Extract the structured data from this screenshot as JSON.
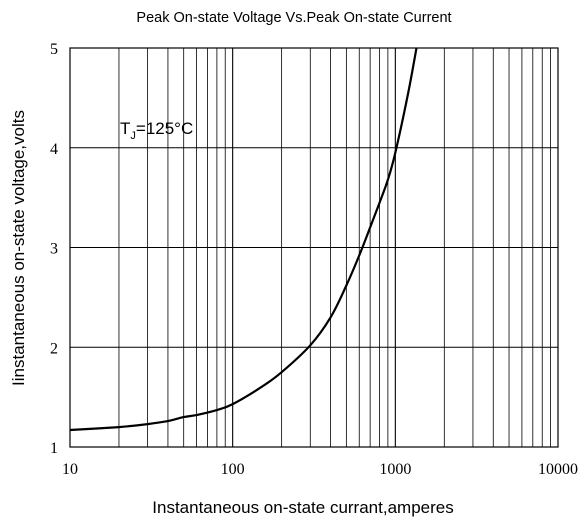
{
  "chart_data": {
    "type": "line",
    "title": "Peak On-state Voltage Vs.Peak On-state Current",
    "xlabel": "Instantaneous on-state currant,amperes",
    "ylabel": "Iinstantaneous on-state voltage,volts",
    "x_scale": "log",
    "y_scale": "linear",
    "xlim": [
      10,
      10000
    ],
    "ylim": [
      1,
      5
    ],
    "x_ticks": [
      "10",
      "100",
      "1000",
      "10000"
    ],
    "y_ticks": [
      "1",
      "2",
      "3",
      "4",
      "5"
    ],
    "grid": true,
    "annotation": {
      "text_main": "T",
      "text_sub": "J",
      "text_rest": "=125°C"
    },
    "series": [
      {
        "x": [
          10,
          20,
          30,
          40,
          50,
          60,
          80,
          100,
          150,
          200,
          300,
          400,
          500,
          600,
          700,
          800,
          900,
          1000,
          1200,
          1350
        ],
        "values": [
          1.17,
          1.2,
          1.23,
          1.26,
          1.3,
          1.32,
          1.37,
          1.43,
          1.6,
          1.75,
          2.02,
          2.3,
          2.62,
          2.92,
          3.2,
          3.45,
          3.68,
          3.95,
          4.55,
          5.0
        ]
      }
    ]
  }
}
